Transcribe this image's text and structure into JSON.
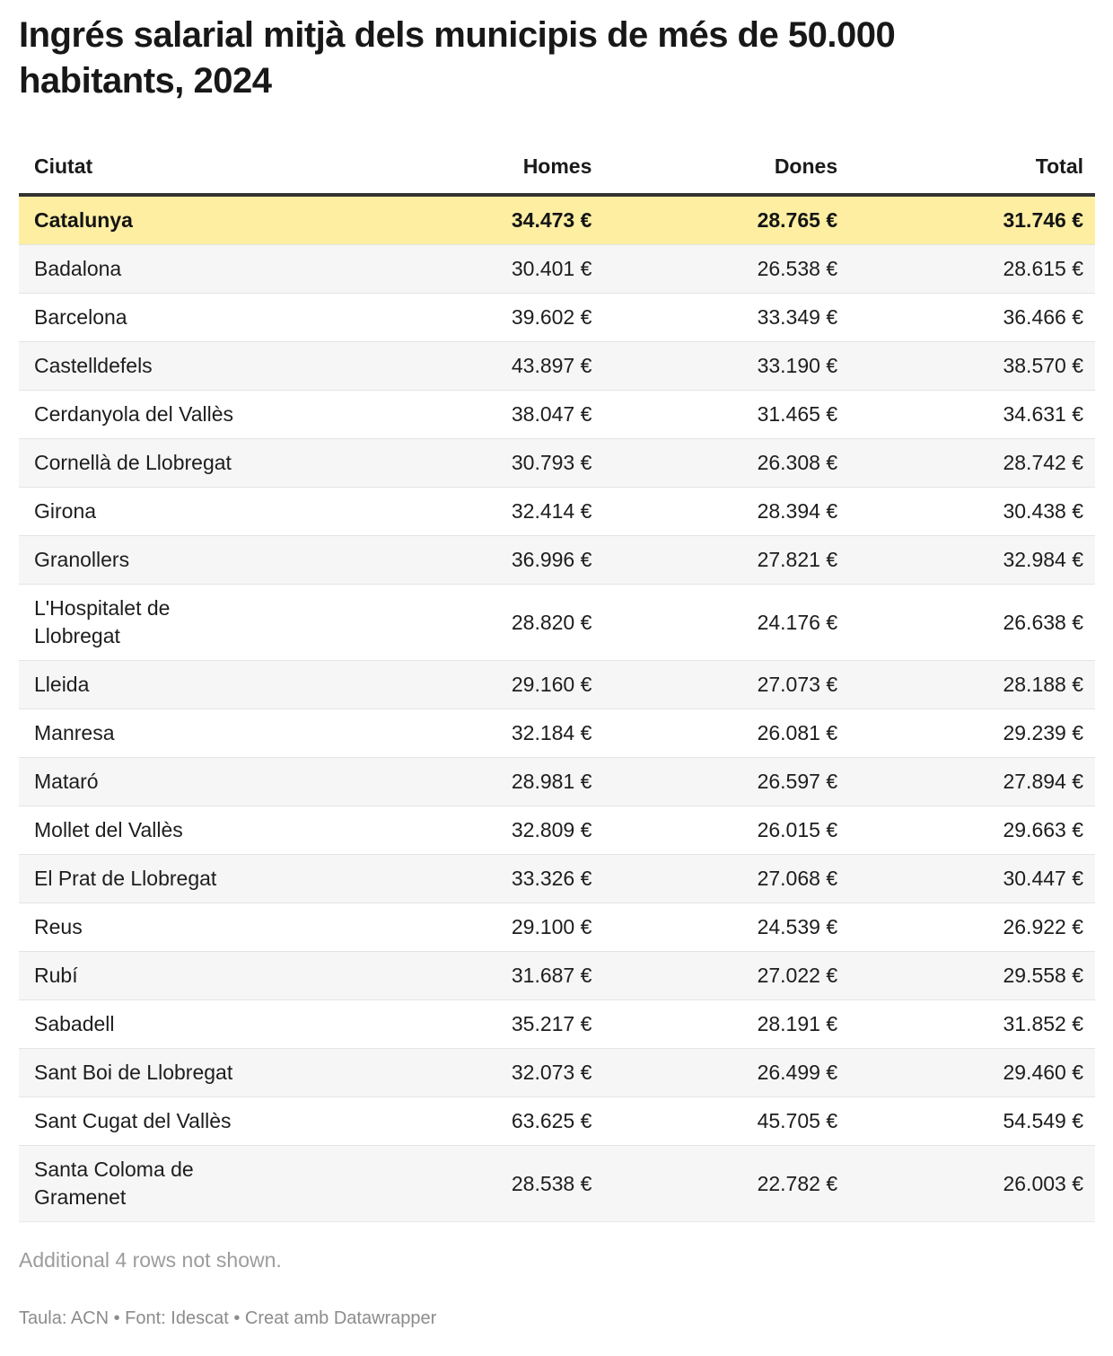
{
  "title": "Ingrés salarial mitjà dels municipis de més de 50.000\nhabitants, 2024",
  "table": {
    "columns": [
      "Ciutat",
      "Homes",
      "Dones",
      "Total"
    ],
    "highlight_row_index": 0,
    "rows": [
      [
        "Catalunya",
        "34.473 €",
        "28.765 €",
        "31.746 €"
      ],
      [
        "Badalona",
        "30.401 €",
        "26.538 €",
        "28.615 €"
      ],
      [
        "Barcelona",
        "39.602 €",
        "33.349 €",
        "36.466 €"
      ],
      [
        "Castelldefels",
        "43.897 €",
        "33.190 €",
        "38.570 €"
      ],
      [
        "Cerdanyola del Vallès",
        "38.047 €",
        "31.465 €",
        "34.631 €"
      ],
      [
        "Cornellà de Llobregat",
        "30.793 €",
        "26.308 €",
        "28.742 €"
      ],
      [
        "Girona",
        "32.414 €",
        "28.394 €",
        "30.438 €"
      ],
      [
        "Granollers",
        "36.996 €",
        "27.821 €",
        "32.984 €"
      ],
      [
        "L'Hospitalet de\nLlobregat",
        "28.820 €",
        "24.176 €",
        "26.638 €"
      ],
      [
        "Lleida",
        "29.160 €",
        "27.073 €",
        "28.188 €"
      ],
      [
        "Manresa",
        "32.184 €",
        "26.081 €",
        "29.239 €"
      ],
      [
        "Mataró",
        "28.981 €",
        "26.597 €",
        "27.894 €"
      ],
      [
        "Mollet del Vallès",
        "32.809 €",
        "26.015 €",
        "29.663 €"
      ],
      [
        "El Prat de Llobregat",
        "33.326 €",
        "27.068 €",
        "30.447 €"
      ],
      [
        "Reus",
        "29.100 €",
        "24.539 €",
        "26.922 €"
      ],
      [
        "Rubí",
        "31.687 €",
        "27.022 €",
        "29.558 €"
      ],
      [
        "Sabadell",
        "35.217 €",
        "28.191 €",
        "31.852 €"
      ],
      [
        "Sant Boi de Llobregat",
        "32.073 €",
        "26.499 €",
        "29.460 €"
      ],
      [
        "Sant Cugat del Vallès",
        "63.625 €",
        "45.705 €",
        "54.549 €"
      ],
      [
        "Santa Coloma de\nGramenet",
        "28.538 €",
        "22.782 €",
        "26.003 €"
      ]
    ]
  },
  "footer": {
    "note": "Additional 4 rows not shown.",
    "attribution": "Taula: ACN • Font: Idescat • Creat amb Datawrapper"
  },
  "colors": {
    "highlight_bg": "#fdeea2",
    "stripe_bg": "#f6f6f6",
    "header_border": "#333333",
    "note_text": "#9c9c9c",
    "attribution_text": "#8c8c8c"
  },
  "chart_data": {
    "type": "table",
    "title": "Ingrés salarial mitjà dels municipis de més de 50.000 habitants, 2024",
    "columns": [
      "Ciutat",
      "Homes",
      "Dones",
      "Total"
    ],
    "units": "€",
    "highlighted_row": "Catalunya",
    "rows": [
      [
        "Catalunya",
        34473,
        28765,
        31746
      ],
      [
        "Badalona",
        30401,
        26538,
        28615
      ],
      [
        "Barcelona",
        39602,
        33349,
        36466
      ],
      [
        "Castelldefels",
        43897,
        33190,
        38570
      ],
      [
        "Cerdanyola del Vallès",
        38047,
        31465,
        34631
      ],
      [
        "Cornellà de Llobregat",
        30793,
        26308,
        28742
      ],
      [
        "Girona",
        32414,
        28394,
        30438
      ],
      [
        "Granollers",
        36996,
        27821,
        32984
      ],
      [
        "L'Hospitalet de Llobregat",
        28820,
        24176,
        26638
      ],
      [
        "Lleida",
        29160,
        27073,
        28188
      ],
      [
        "Manresa",
        32184,
        26081,
        29239
      ],
      [
        "Mataró",
        28981,
        26597,
        27894
      ],
      [
        "Mollet del Vallès",
        32809,
        26015,
        29663
      ],
      [
        "El Prat de Llobregat",
        33326,
        27068,
        30447
      ],
      [
        "Reus",
        29100,
        24539,
        26922
      ],
      [
        "Rubí",
        31687,
        27022,
        29558
      ],
      [
        "Sabadell",
        35217,
        28191,
        31852
      ],
      [
        "Sant Boi de Llobregat",
        32073,
        26499,
        29460
      ],
      [
        "Sant Cugat del Vallès",
        63625,
        45705,
        54549
      ],
      [
        "Santa Coloma de Gramenet",
        28538,
        22782,
        26003
      ]
    ],
    "note": "Additional 4 rows not shown.",
    "source": "Taula: ACN • Font: Idescat • Creat amb Datawrapper"
  }
}
